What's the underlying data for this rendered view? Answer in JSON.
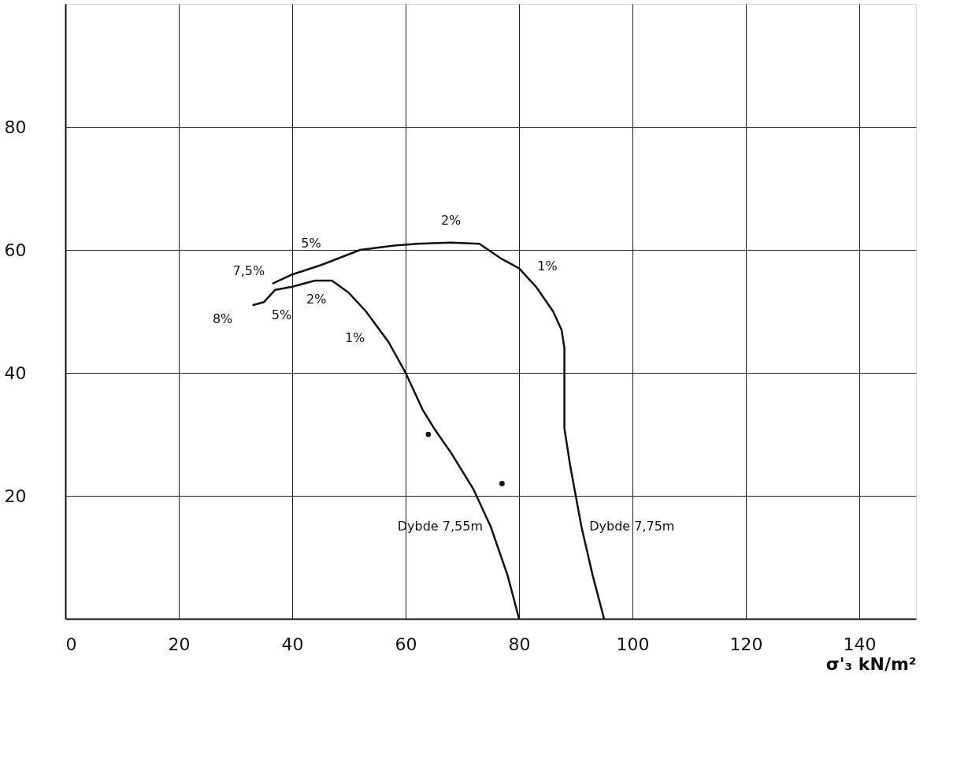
{
  "chart_data": {
    "type": "line",
    "xlabel": "σ'₃ kN/m²",
    "xlim": [
      0,
      150
    ],
    "ylim": [
      0,
      100
    ],
    "xticks": [
      0,
      20,
      40,
      60,
      80,
      100,
      120,
      140
    ],
    "yticks": [
      20,
      40,
      60,
      80
    ],
    "grid": true,
    "marker": "none",
    "line_style": "solid",
    "series": [
      {
        "color": "#111111",
        "x": [
          33,
          35,
          37,
          40,
          44,
          47,
          50,
          53,
          57,
          60,
          63,
          65,
          68,
          72,
          75,
          78,
          80
        ],
        "values": [
          51,
          51.5,
          53.5,
          54,
          55,
          55,
          53,
          50,
          45,
          40,
          34,
          31,
          27,
          21,
          15,
          7,
          0
        ]
      },
      {
        "color": "#111111",
        "x": [
          36.5,
          40,
          45,
          52,
          58,
          62,
          68,
          73,
          77,
          80,
          83,
          86,
          87.5,
          88,
          88,
          88,
          89,
          91,
          93,
          95
        ],
        "values": [
          54.5,
          56,
          57.5,
          60,
          60.7,
          61,
          61.2,
          61,
          58.5,
          57,
          54,
          50,
          47,
          44,
          40,
          31,
          25,
          15,
          7,
          0
        ]
      },
      {
        "type": "scatter",
        "color": "#111111",
        "x": [
          64,
          77
        ],
        "values": [
          30,
          22
        ]
      }
    ],
    "annotations": [
      {
        "text": "2%",
        "x": 68,
        "y": 61.2
      },
      {
        "text": "5%",
        "x": 45,
        "y": 57.5
      },
      {
        "text": "7,5%",
        "x": 36.5,
        "y": 54.5
      },
      {
        "text": "8%",
        "x": 33,
        "y": 51
      },
      {
        "text": "5%",
        "x": 37,
        "y": 53.5
      },
      {
        "text": "2%",
        "x": 44,
        "y": 55
      },
      {
        "text": "1%",
        "x": 53,
        "y": 50
      },
      {
        "text": "1%",
        "x": 80,
        "y": 57
      },
      {
        "text": "Dybde 7,55m",
        "x": 75,
        "y": 15
      },
      {
        "text": "Dybde 7,75m",
        "x": 91,
        "y": 15
      }
    ]
  }
}
